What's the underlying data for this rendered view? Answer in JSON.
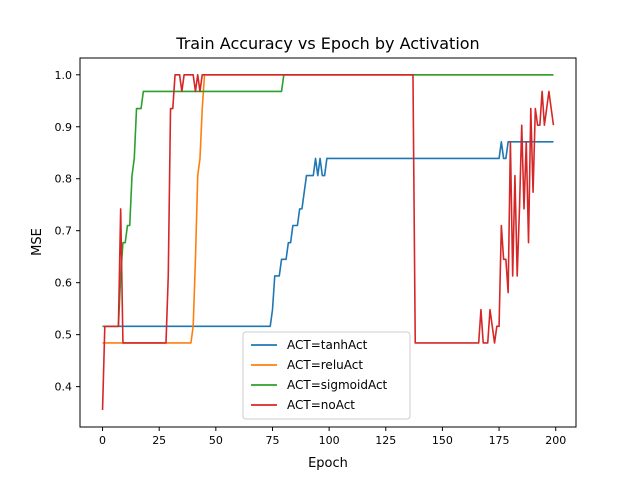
{
  "chart_data": {
    "type": "line",
    "title": "Train Accuracy vs Epoch by Activation",
    "xlabel": "Epoch",
    "ylabel": "MSE",
    "xlim": [
      -9.95,
      208.95
    ],
    "ylim": [
      0.3223,
      1.0323
    ],
    "xticks": [
      0,
      25,
      50,
      75,
      100,
      125,
      150,
      175,
      200
    ],
    "yticks": [
      0.4,
      0.5,
      0.6,
      0.7,
      0.8,
      0.9,
      1.0
    ],
    "xtick_labels": [
      "0",
      "25",
      "50",
      "75",
      "100",
      "125",
      "150",
      "175",
      "200"
    ],
    "ytick_labels": [
      "0.4",
      "0.5",
      "0.6",
      "0.7",
      "0.8",
      "0.9",
      "1.0"
    ],
    "grid": false,
    "legend_position": "lower-center",
    "series": [
      {
        "name": "ACT=tanhAct",
        "color": "#1f77b4",
        "points": [
          [
            0,
            0.516
          ],
          [
            74,
            0.516
          ],
          [
            75,
            0.548
          ],
          [
            76,
            0.613
          ],
          [
            78,
            0.613
          ],
          [
            79,
            0.645
          ],
          [
            81,
            0.645
          ],
          [
            82,
            0.677
          ],
          [
            83,
            0.677
          ],
          [
            84,
            0.71
          ],
          [
            86,
            0.71
          ],
          [
            87,
            0.742
          ],
          [
            88,
            0.742
          ],
          [
            89,
            0.774
          ],
          [
            90,
            0.806
          ],
          [
            93,
            0.806
          ],
          [
            94,
            0.839
          ],
          [
            95,
            0.806
          ],
          [
            96,
            0.839
          ],
          [
            97,
            0.806
          ],
          [
            98,
            0.806
          ],
          [
            99,
            0.839
          ],
          [
            175,
            0.839
          ],
          [
            176,
            0.871
          ],
          [
            177,
            0.839
          ],
          [
            178,
            0.839
          ],
          [
            179,
            0.871
          ],
          [
            199,
            0.871
          ]
        ]
      },
      {
        "name": "ACT=reluAct",
        "color": "#ff7f0e",
        "points": [
          [
            0,
            0.484
          ],
          [
            39,
            0.484
          ],
          [
            40,
            0.516
          ],
          [
            41,
            0.645
          ],
          [
            42,
            0.806
          ],
          [
            43,
            0.839
          ],
          [
            44,
            0.935
          ],
          [
            45,
            1.0
          ],
          [
            199,
            1.0
          ]
        ]
      },
      {
        "name": "ACT=sigmoidAct",
        "color": "#2ca02c",
        "points": [
          [
            0,
            0.516
          ],
          [
            7,
            0.516
          ],
          [
            8,
            0.613
          ],
          [
            9,
            0.677
          ],
          [
            10,
            0.677
          ],
          [
            11,
            0.71
          ],
          [
            12,
            0.71
          ],
          [
            13,
            0.806
          ],
          [
            14,
            0.839
          ],
          [
            15,
            0.935
          ],
          [
            17,
            0.935
          ],
          [
            18,
            0.968
          ],
          [
            79,
            0.968
          ],
          [
            80,
            1.0
          ],
          [
            199,
            1.0
          ]
        ]
      },
      {
        "name": "ACT=noAct",
        "color": "#d62728",
        "points": [
          [
            0,
            0.355
          ],
          [
            1,
            0.516
          ],
          [
            7,
            0.516
          ],
          [
            8,
            0.742
          ],
          [
            9,
            0.484
          ],
          [
            28,
            0.484
          ],
          [
            29,
            0.613
          ],
          [
            30,
            0.935
          ],
          [
            31,
            0.935
          ],
          [
            32,
            1.0
          ],
          [
            34,
            1.0
          ],
          [
            35,
            0.968
          ],
          [
            36,
            1.0
          ],
          [
            40,
            1.0
          ],
          [
            41,
            0.968
          ],
          [
            42,
            1.0
          ],
          [
            43,
            0.968
          ],
          [
            44,
            1.0
          ],
          [
            137,
            1.0
          ],
          [
            138,
            0.484
          ],
          [
            166,
            0.484
          ],
          [
            167,
            0.548
          ],
          [
            168,
            0.484
          ],
          [
            170,
            0.484
          ],
          [
            171,
            0.548
          ],
          [
            172,
            0.516
          ],
          [
            173,
            0.484
          ],
          [
            174,
            0.516
          ],
          [
            175,
            0.516
          ],
          [
            176,
            0.71
          ],
          [
            177,
            0.645
          ],
          [
            178,
            0.645
          ],
          [
            179,
            0.581
          ],
          [
            180,
            0.871
          ],
          [
            181,
            0.613
          ],
          [
            182,
            0.806
          ],
          [
            183,
            0.613
          ],
          [
            184,
            0.742
          ],
          [
            185,
            0.903
          ],
          [
            186,
            0.742
          ],
          [
            187,
            0.871
          ],
          [
            188,
            0.677
          ],
          [
            189,
            0.935
          ],
          [
            190,
            0.774
          ],
          [
            191,
            0.935
          ],
          [
            192,
            0.903
          ],
          [
            193,
            0.903
          ],
          [
            194,
            0.968
          ],
          [
            195,
            0.903
          ],
          [
            196,
            0.935
          ],
          [
            197,
            0.968
          ],
          [
            198,
            0.935
          ],
          [
            199,
            0.903
          ]
        ]
      }
    ]
  }
}
